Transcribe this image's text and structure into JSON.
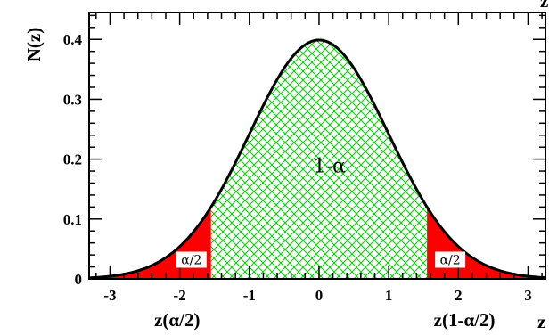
{
  "chart_data": {
    "type": "area",
    "title": "",
    "xlabel": "z",
    "ylabel": "N(z)",
    "xlim": [
      -3.3,
      3.25
    ],
    "ylim": [
      0,
      0.445
    ],
    "x_ticks": [
      -3,
      -2,
      -1,
      0,
      1,
      2,
      3
    ],
    "x_tick_labels": [
      "-3",
      "-2",
      "-1",
      "0",
      "1",
      "2",
      "3"
    ],
    "y_ticks": [
      0,
      0.1,
      0.2,
      0.3,
      0.4
    ],
    "y_tick_labels": [
      "0",
      "0.1",
      "0.2",
      "0.3",
      "0.4"
    ],
    "curve": {
      "function": "standard normal density",
      "mean": 0,
      "sd": 1,
      "peak": 0.399
    },
    "regions": [
      {
        "label": "α/2",
        "from": -3.3,
        "to": -1.55,
        "fill": "#ff0000",
        "pattern": "solid"
      },
      {
        "label": "1-α",
        "from": -1.55,
        "to": 1.55,
        "fill": "#00d000",
        "pattern": "crosshatch"
      },
      {
        "label": "α/2",
        "from": 1.55,
        "to": 3.25,
        "fill": "#ff0000",
        "pattern": "solid"
      }
    ],
    "annotations": [
      {
        "text": "z(α/2)",
        "at_x": -1.55
      },
      {
        "text": "z(1-α/2)",
        "at_x": 1.55
      }
    ],
    "grid": false,
    "legend": "none"
  }
}
